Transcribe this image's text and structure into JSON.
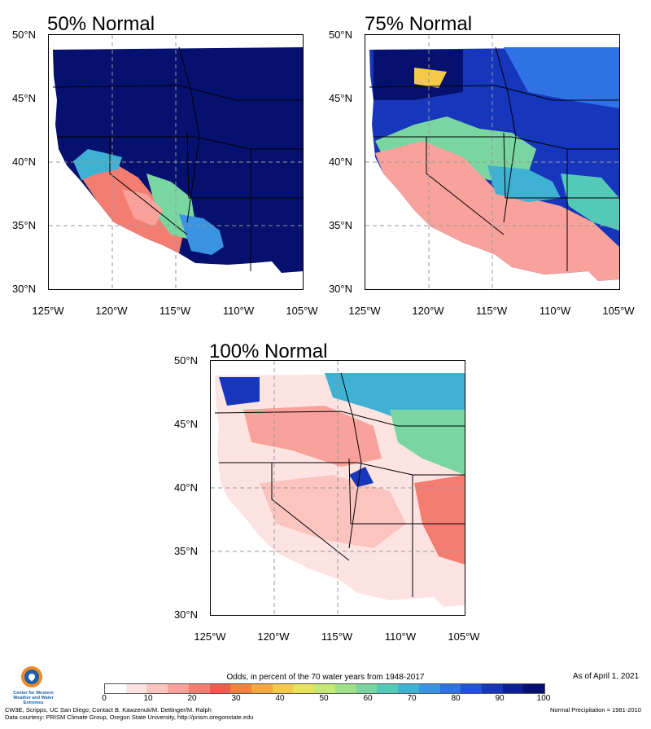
{
  "panels": [
    {
      "id": "p50",
      "title": "50% Normal",
      "variant": "dry"
    },
    {
      "id": "p75",
      "title": "75% Normal",
      "variant": "mid"
    },
    {
      "id": "p100",
      "title": "100% Normal",
      "variant": "wet"
    }
  ],
  "latitude_labels": [
    "50°N",
    "45°N",
    "40°N",
    "35°N",
    "30°N"
  ],
  "longitude_labels": [
    "125°W",
    "120°W",
    "115°W",
    "110°W",
    "105°W"
  ],
  "colorbar": {
    "title": "Odds, in percent of the 70 water years from 1948-2017",
    "ticks": [
      "0",
      "10",
      "20",
      "30",
      "40",
      "50",
      "60",
      "70",
      "80",
      "90",
      "100"
    ],
    "colors": [
      "#ffffff",
      "#fde4e2",
      "#fbc4bf",
      "#f8a29b",
      "#f47d72",
      "#ef5b4c",
      "#f3823f",
      "#f7a83e",
      "#f5c94a",
      "#e8e45a",
      "#c6e874",
      "#9fe088",
      "#79d6a0",
      "#55c9b8",
      "#3fb2d4",
      "#3a93e3",
      "#2f72e6",
      "#2153d8",
      "#1636bb",
      "#0c1f95",
      "#051070"
    ]
  },
  "footer": {
    "as_of": "As of April 1, 2021",
    "credit_line1": "CW3E, Scripps, UC San Diego; Contact B. Kawzenuk/M. Dettinger/M. Ralph",
    "credit_line2": "Data courtesy: PRISM Climate Group, Oregon State University, http://prism.oregonstate.edu",
    "normal_note": "Normal Precipitation = 1981-2010",
    "logo_text": "Center for Western Weather and Water Extremes"
  }
}
